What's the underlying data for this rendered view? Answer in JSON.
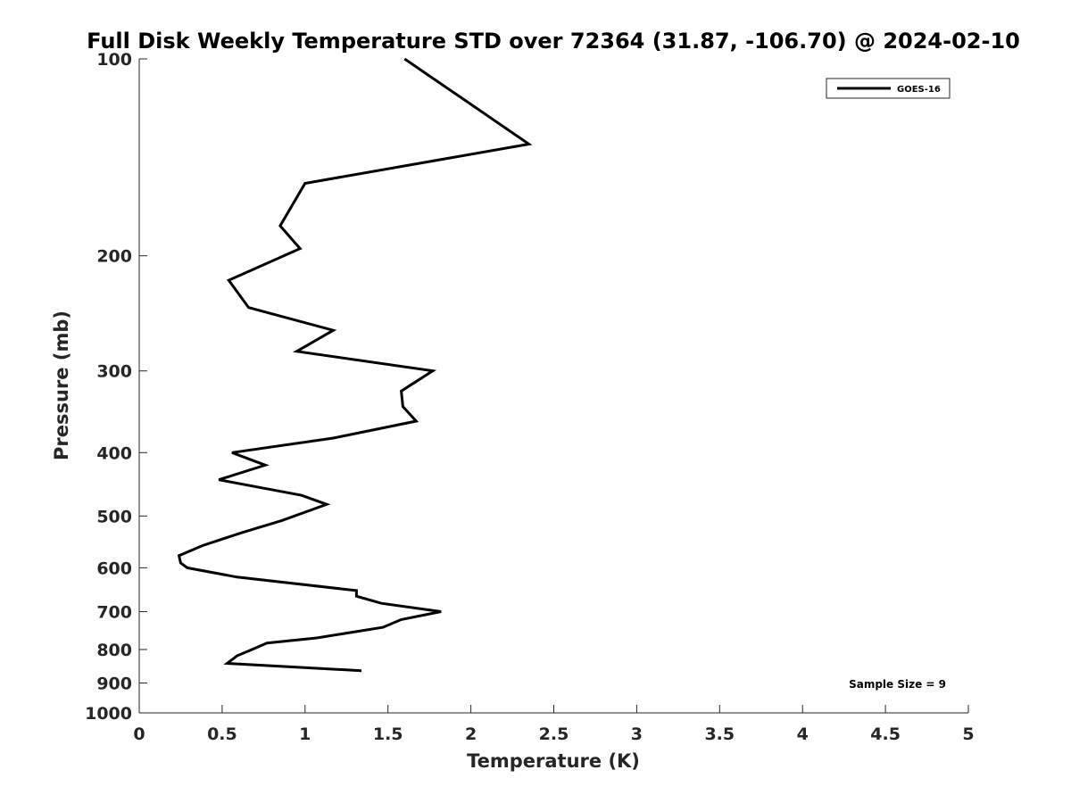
{
  "chart_data": {
    "type": "line",
    "title": "Full Disk Weekly Temperature STD over 72364 (31.87, -106.70) @ 2024-02-10",
    "xlabel": "Temperature (K)",
    "ylabel": "Pressure (mb)",
    "xlim": [
      0,
      5
    ],
    "ylim": [
      100,
      1000
    ],
    "y_scale": "log",
    "y_reversed": true,
    "x_ticks": [
      "0",
      "0.5",
      "1",
      "1.5",
      "2",
      "2.5",
      "3",
      "3.5",
      "4",
      "4.5",
      "5"
    ],
    "y_ticks": [
      "100",
      "200",
      "300",
      "400",
      "500",
      "600",
      "700",
      "800",
      "900",
      "1000"
    ],
    "grid": false,
    "legend_position": "top-right",
    "annotation": "Sample Size = 9",
    "series": [
      {
        "name": "GOES-16",
        "color": "#000000",
        "x": [
          1.6,
          1.95,
          2.35,
          1.0,
          0.85,
          0.97,
          0.54,
          0.66,
          1.17,
          0.95,
          1.77,
          1.58,
          1.59,
          1.67,
          1.17,
          0.56,
          0.76,
          0.48,
          0.98,
          1.13,
          0.86,
          0.62,
          0.38,
          0.24,
          0.25,
          0.29,
          0.59,
          1.31,
          1.31,
          1.46,
          1.82,
          1.58,
          1.47,
          1.07,
          0.77,
          0.68,
          0.59,
          0.53,
          1.34
        ],
        "y": [
          100,
          115,
          135,
          155,
          180,
          195,
          218,
          240,
          260,
          280,
          300,
          322,
          340,
          358,
          380,
          400,
          418,
          440,
          465,
          480,
          508,
          530,
          555,
          575,
          590,
          600,
          620,
          650,
          663,
          680,
          700,
          720,
          740,
          768,
          782,
          800,
          818,
          840,
          862
        ]
      }
    ]
  }
}
